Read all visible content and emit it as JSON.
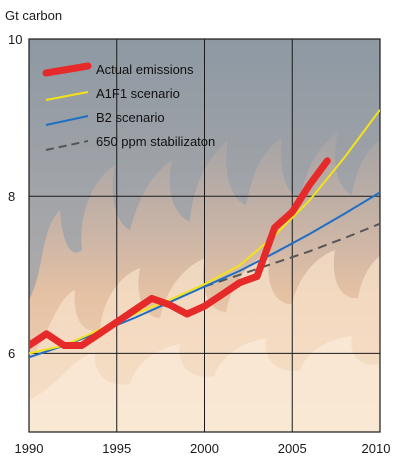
{
  "chart_data": {
    "type": "line",
    "title": "",
    "ylabel": "Gt carbon",
    "xlabel": "",
    "xlim": [
      1990,
      2010
    ],
    "ylim": [
      5,
      10
    ],
    "xticks": [
      "1990",
      "1995",
      "2000",
      "2005",
      "2010"
    ],
    "yticks": [
      "6",
      "8",
      "10"
    ],
    "grid": true,
    "legend_position": "top-left",
    "background": "flames",
    "series": [
      {
        "name": "Actual emissions",
        "color": "#e62a2a",
        "style": "thick",
        "points": [
          [
            1990,
            6.1
          ],
          [
            1991,
            6.25
          ],
          [
            1992,
            6.1
          ],
          [
            1993,
            6.1
          ],
          [
            1994,
            6.25
          ],
          [
            1995,
            6.4
          ],
          [
            1996,
            6.55
          ],
          [
            1997,
            6.7
          ],
          [
            1998,
            6.62
          ],
          [
            1999,
            6.5
          ],
          [
            2000,
            6.6
          ],
          [
            2001,
            6.75
          ],
          [
            2002,
            6.9
          ],
          [
            2003,
            6.98
          ],
          [
            2004,
            7.6
          ],
          [
            2005,
            7.8
          ],
          [
            2006,
            8.15
          ],
          [
            2007,
            8.45
          ]
        ]
      },
      {
        "name": "A1F1 scenario",
        "color": "#f2e21a",
        "style": "solid",
        "points": [
          [
            1990,
            6.0
          ],
          [
            1992,
            6.1
          ],
          [
            1994,
            6.3
          ],
          [
            1996,
            6.5
          ],
          [
            1998,
            6.68
          ],
          [
            2000,
            6.88
          ],
          [
            2002,
            7.12
          ],
          [
            2004,
            7.5
          ],
          [
            2006,
            7.95
          ],
          [
            2008,
            8.5
          ],
          [
            2010,
            9.1
          ]
        ]
      },
      {
        "name": "B2 scenario",
        "color": "#1f6fc4",
        "style": "solid",
        "points": [
          [
            1990,
            5.95
          ],
          [
            1992,
            6.1
          ],
          [
            1994,
            6.27
          ],
          [
            1996,
            6.45
          ],
          [
            1998,
            6.65
          ],
          [
            2000,
            6.85
          ],
          [
            2002,
            7.05
          ],
          [
            2004,
            7.28
          ],
          [
            2006,
            7.52
          ],
          [
            2008,
            7.78
          ],
          [
            2010,
            8.05
          ]
        ]
      },
      {
        "name": "650 ppm stabilizaton",
        "color": "#555555",
        "style": "dashed",
        "points": [
          [
            2000,
            6.85
          ],
          [
            2002,
            7.0
          ],
          [
            2004,
            7.15
          ],
          [
            2006,
            7.3
          ],
          [
            2008,
            7.47
          ],
          [
            2010,
            7.65
          ]
        ]
      }
    ]
  }
}
